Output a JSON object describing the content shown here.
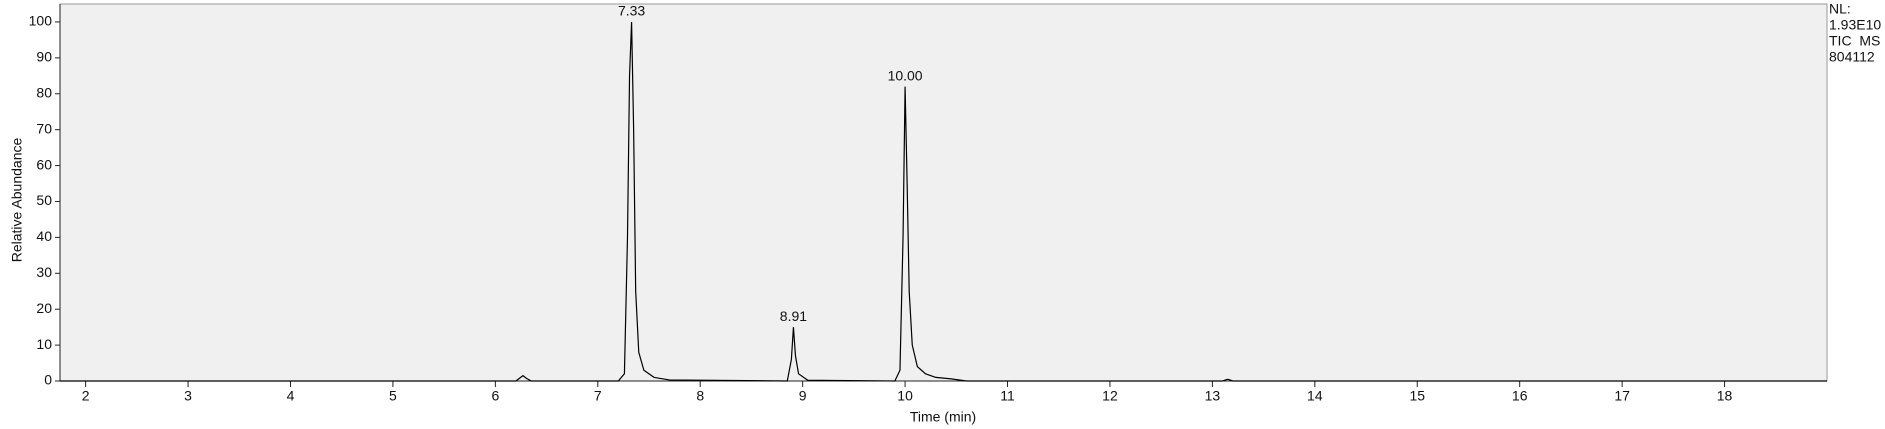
{
  "chart_data": {
    "type": "line",
    "x_label": "Time (min)",
    "y_label": "Relative Abundance",
    "side_labels": [
      "NL:",
      "1.93E10",
      "TIC  MS",
      "804112"
    ],
    "x": [
      1.75,
      6.2,
      6.27,
      6.3,
      6.35,
      7.2,
      7.26,
      7.29,
      7.31,
      7.33,
      7.35,
      7.37,
      7.4,
      7.45,
      7.55,
      7.7,
      8.85,
      8.89,
      8.91,
      8.93,
      8.96,
      9.05,
      9.9,
      9.95,
      9.98,
      10.0,
      10.02,
      10.04,
      10.07,
      10.12,
      10.2,
      10.3,
      10.45,
      10.6,
      13.1,
      13.15,
      13.2,
      19.0
    ],
    "series": [
      {
        "name": "TIC MS",
        "color": "#000000",
        "values": [
          0,
          0,
          1.5,
          0.8,
          0,
          0,
          2,
          40,
          85,
          100,
          70,
          25,
          8,
          3,
          1,
          0.3,
          0,
          6,
          15,
          7,
          2,
          0.2,
          0,
          3,
          40,
          82,
          55,
          25,
          10,
          4,
          2,
          1,
          0.6,
          0,
          0,
          0.5,
          0,
          0
        ]
      }
    ],
    "annotations": [
      {
        "x": 7.33,
        "y": 100,
        "text": "7.33"
      },
      {
        "x": 8.91,
        "y": 15,
        "text": "8.91"
      },
      {
        "x": 10.0,
        "y": 82,
        "text": "10.00"
      }
    ],
    "xlim": [
      1.75,
      19.0
    ],
    "ylim": [
      0,
      105
    ],
    "xticks": [
      2,
      3,
      4,
      5,
      6,
      7,
      8,
      9,
      10,
      11,
      12,
      13,
      14,
      15,
      16,
      17,
      18
    ],
    "yticks": [
      0,
      10,
      20,
      30,
      40,
      50,
      60,
      70,
      80,
      90,
      100
    ],
    "background": "#f0f0f0"
  }
}
